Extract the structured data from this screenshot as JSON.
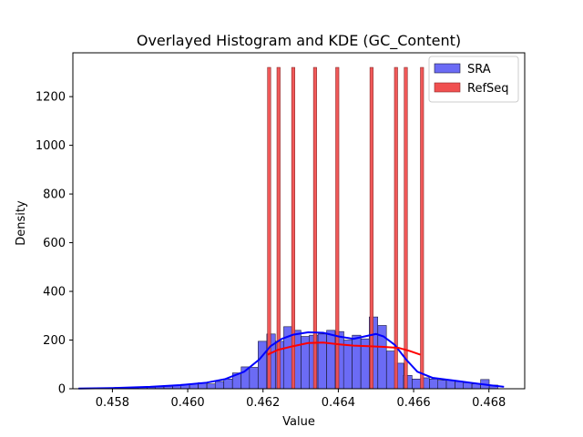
{
  "chart_data": {
    "type": "histogram+kde",
    "title": "Overlayed Histogram and KDE (GC_Content)",
    "xlabel": "Value",
    "ylabel": "Density",
    "xlim": [
      0.45695,
      0.46895
    ],
    "ylim": [
      0,
      1380
    ],
    "xticks": [
      0.458,
      0.46,
      0.462,
      0.464,
      0.466,
      0.468
    ],
    "xtick_labels": [
      "0.458",
      "0.460",
      "0.462",
      "0.464",
      "0.466",
      "0.468"
    ],
    "yticks": [
      0,
      200,
      400,
      600,
      800,
      1000,
      1200
    ],
    "ytick_labels": [
      "0",
      "200",
      "400",
      "600",
      "800",
      "1000",
      "1200"
    ],
    "grid": false,
    "legend_position": "top-right",
    "series": [
      {
        "name": "SRA",
        "color": "#0000ff",
        "fill": "#6b6bf5",
        "bin_width": 0.000227,
        "bins": [
          [
            0.4571,
            2
          ],
          [
            0.45733,
            2
          ],
          [
            0.45755,
            3
          ],
          [
            0.45778,
            2
          ],
          [
            0.45801,
            3
          ],
          [
            0.45823,
            3
          ],
          [
            0.45846,
            4
          ],
          [
            0.45869,
            5
          ],
          [
            0.45892,
            6
          ],
          [
            0.45914,
            8
          ],
          [
            0.45937,
            10
          ],
          [
            0.4596,
            15
          ],
          [
            0.45982,
            18
          ],
          [
            0.46005,
            20
          ],
          [
            0.46028,
            25
          ],
          [
            0.46051,
            20
          ],
          [
            0.46073,
            30
          ],
          [
            0.46096,
            40
          ],
          [
            0.46119,
            65
          ],
          [
            0.46142,
            90
          ],
          [
            0.46164,
            88
          ],
          [
            0.46187,
            195
          ],
          [
            0.4621,
            225
          ],
          [
            0.46233,
            195
          ],
          [
            0.46255,
            255
          ],
          [
            0.46278,
            240
          ],
          [
            0.46301,
            215
          ],
          [
            0.46323,
            220
          ],
          [
            0.46346,
            225
          ],
          [
            0.46369,
            240
          ],
          [
            0.46392,
            235
          ],
          [
            0.46414,
            200
          ],
          [
            0.46437,
            220
          ],
          [
            0.4646,
            205
          ],
          [
            0.46482,
            295
          ],
          [
            0.46505,
            260
          ],
          [
            0.46528,
            155
          ],
          [
            0.46551,
            105
          ],
          [
            0.46573,
            55
          ],
          [
            0.46596,
            40
          ],
          [
            0.46619,
            45
          ],
          [
            0.46642,
            40
          ],
          [
            0.46664,
            35
          ],
          [
            0.46687,
            35
          ],
          [
            0.4671,
            30
          ],
          [
            0.46732,
            25
          ],
          [
            0.46755,
            20
          ],
          [
            0.46778,
            38
          ],
          [
            0.46801,
            15
          ]
        ],
        "kde": [
          [
            0.4571,
            1
          ],
          [
            0.458,
            3
          ],
          [
            0.459,
            8
          ],
          [
            0.4598,
            15
          ],
          [
            0.4605,
            25
          ],
          [
            0.461,
            40
          ],
          [
            0.4615,
            70
          ],
          [
            0.4619,
            120
          ],
          [
            0.4622,
            175
          ],
          [
            0.4625,
            205
          ],
          [
            0.4628,
            222
          ],
          [
            0.4632,
            232
          ],
          [
            0.4636,
            230
          ],
          [
            0.464,
            215
          ],
          [
            0.4644,
            205
          ],
          [
            0.4647,
            215
          ],
          [
            0.465,
            225
          ],
          [
            0.4652,
            215
          ],
          [
            0.4655,
            180
          ],
          [
            0.4658,
            120
          ],
          [
            0.4661,
            70
          ],
          [
            0.4665,
            45
          ],
          [
            0.467,
            35
          ],
          [
            0.4675,
            25
          ],
          [
            0.468,
            15
          ],
          [
            0.4684,
            8
          ]
        ]
      },
      {
        "name": "RefSeq",
        "color": "#ff0000",
        "fill": "#f05050",
        "bin_width": 8.5e-05,
        "bins": [
          [
            0.46212,
            1320
          ],
          [
            0.46237,
            1320
          ],
          [
            0.46276,
            1320
          ],
          [
            0.46334,
            1320
          ],
          [
            0.46393,
            1320
          ],
          [
            0.46484,
            1320
          ],
          [
            0.46549,
            1320
          ],
          [
            0.46575,
            1320
          ],
          [
            0.46618,
            1320
          ]
        ],
        "kde": [
          [
            0.46212,
            140
          ],
          [
            0.4624,
            160
          ],
          [
            0.4628,
            175
          ],
          [
            0.4632,
            188
          ],
          [
            0.4636,
            190
          ],
          [
            0.464,
            183
          ],
          [
            0.4644,
            177
          ],
          [
            0.4648,
            175
          ],
          [
            0.4652,
            172
          ],
          [
            0.4656,
            168
          ],
          [
            0.4659,
            155
          ],
          [
            0.46618,
            140
          ]
        ]
      }
    ]
  }
}
